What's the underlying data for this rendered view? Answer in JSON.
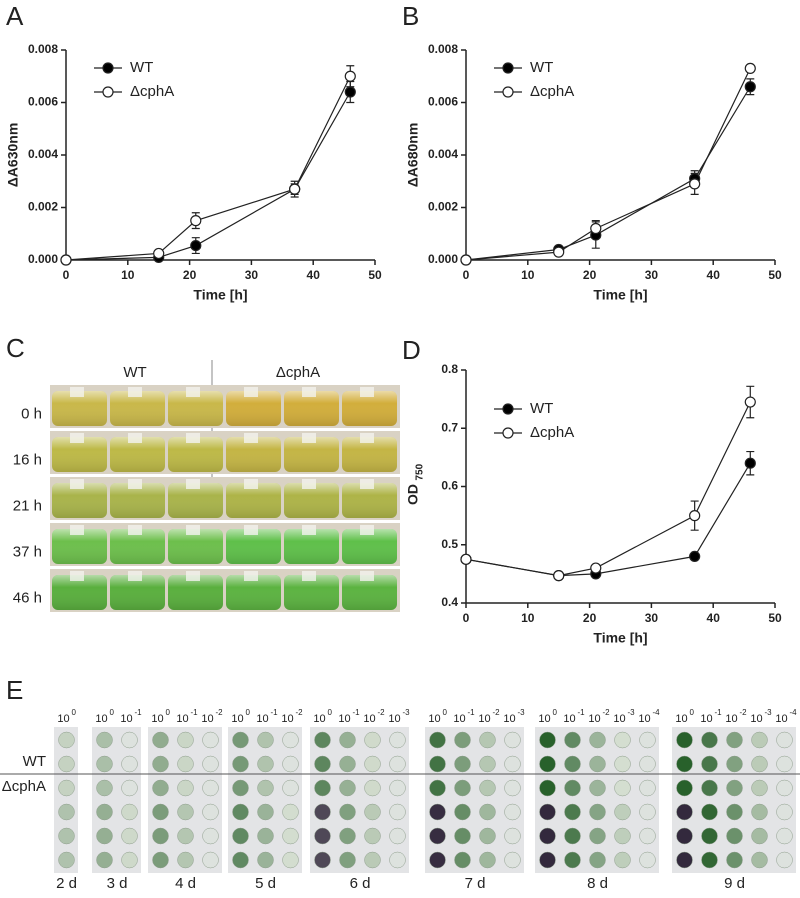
{
  "chart_data": [
    {
      "type": "line",
      "panel": "A",
      "xlabel": "Time [h]",
      "ylabel": "ΔA630nm",
      "x": [
        0,
        15,
        21,
        37,
        46
      ],
      "xlim": [
        0,
        50
      ],
      "xticks": [
        0,
        10,
        20,
        30,
        40,
        50
      ],
      "ylim": [
        0,
        0.008
      ],
      "yticks": [
        {
          "value": 0,
          "label": "0.000"
        },
        {
          "value": 0.002,
          "label": "0.002"
        },
        {
          "value": 0.004,
          "label": "0.004"
        },
        {
          "value": 0.006,
          "label": "0.006"
        },
        {
          "value": 0.008,
          "label": "0.008"
        }
      ],
      "series": [
        {
          "name": "WT",
          "color": "#000000",
          "values": [
            0,
            0.0001,
            0.00055,
            0.0027,
            0.0064
          ],
          "errors": [
            0,
            5e-05,
            0.0003,
            0.0003,
            0.0004
          ]
        },
        {
          "name": "ΔcphA",
          "color": "#ffffff",
          "values": [
            0,
            0.00025,
            0.0015,
            0.0027,
            0.007
          ],
          "errors": [
            0,
            0,
            0.0003,
            0.0002,
            0.0004
          ]
        }
      ]
    },
    {
      "type": "line",
      "panel": "B",
      "xlabel": "Time [h]",
      "ylabel": "ΔA680nm",
      "x": [
        0,
        15,
        21,
        37,
        46
      ],
      "xlim": [
        0,
        50
      ],
      "xticks": [
        0,
        10,
        20,
        30,
        40,
        50
      ],
      "ylim": [
        0,
        0.008
      ],
      "yticks": [
        {
          "value": 0,
          "label": "0.000"
        },
        {
          "value": 0.002,
          "label": "0.002"
        },
        {
          "value": 0.004,
          "label": "0.004"
        },
        {
          "value": 0.006,
          "label": "0.006"
        },
        {
          "value": 0.008,
          "label": "0.008"
        }
      ],
      "series": [
        {
          "name": "WT",
          "color": "#000000",
          "values": [
            0,
            0.0004,
            0.00095,
            0.0031,
            0.0066
          ],
          "errors": [
            0,
            5e-05,
            0.0005,
            0.0003,
            0.0003
          ]
        },
        {
          "name": "ΔcphA",
          "color": "#ffffff",
          "values": [
            0,
            0.0003,
            0.0012,
            0.0029,
            0.0073
          ],
          "errors": [
            0,
            0,
            0.0003,
            0.0004,
            0.0001
          ]
        }
      ]
    },
    {
      "type": "line",
      "panel": "D",
      "xlabel": "Time [h]",
      "ylabel": "OD",
      "ylabel_subscript": "750",
      "x": [
        0,
        15,
        21,
        37,
        46
      ],
      "xlim": [
        0,
        50
      ],
      "xticks": [
        0,
        10,
        20,
        30,
        40,
        50
      ],
      "ylim": [
        0.4,
        0.8
      ],
      "yticks": [
        0.4,
        0.5,
        0.6,
        0.7,
        0.8
      ],
      "series": [
        {
          "name": "WT",
          "color": "#000000",
          "values": [
            0.475,
            0.447,
            0.45,
            0.48,
            0.64
          ],
          "errors": [
            0,
            0,
            0,
            0,
            0.02
          ]
        },
        {
          "name": "ΔcphA",
          "color": "#ffffff",
          "values": [
            0.475,
            0.447,
            0.46,
            0.55,
            0.745
          ],
          "errors": [
            0,
            0,
            0,
            0.025,
            0.027
          ]
        }
      ]
    }
  ],
  "panel_c": {
    "panel": "C",
    "columns": [
      "WT",
      "ΔcphA"
    ],
    "rows": [
      "0 h",
      "16 h",
      "21 h",
      "37 h",
      "46 h"
    ]
  },
  "panel_e": {
    "panel": "E",
    "dilution_base": "10",
    "strains": [
      "WT",
      "ΔcphA"
    ],
    "groups": [
      {
        "day": "2 d",
        "exponents": [
          "0"
        ]
      },
      {
        "day": "3 d",
        "exponents": [
          "0",
          "-1"
        ]
      },
      {
        "day": "4 d",
        "exponents": [
          "0",
          "-1",
          "-2"
        ]
      },
      {
        "day": "5 d",
        "exponents": [
          "0",
          "-1",
          "-2"
        ]
      },
      {
        "day": "6 d",
        "exponents": [
          "0",
          "-1",
          "-2",
          "-3"
        ]
      },
      {
        "day": "7 d",
        "exponents": [
          "0",
          "-1",
          "-2",
          "-3"
        ]
      },
      {
        "day": "8 d",
        "exponents": [
          "0",
          "-1",
          "-2",
          "-3",
          "-4"
        ]
      },
      {
        "day": "9 d",
        "exponents": [
          "0",
          "-1",
          "-2",
          "-3",
          "-4"
        ]
      }
    ]
  }
}
